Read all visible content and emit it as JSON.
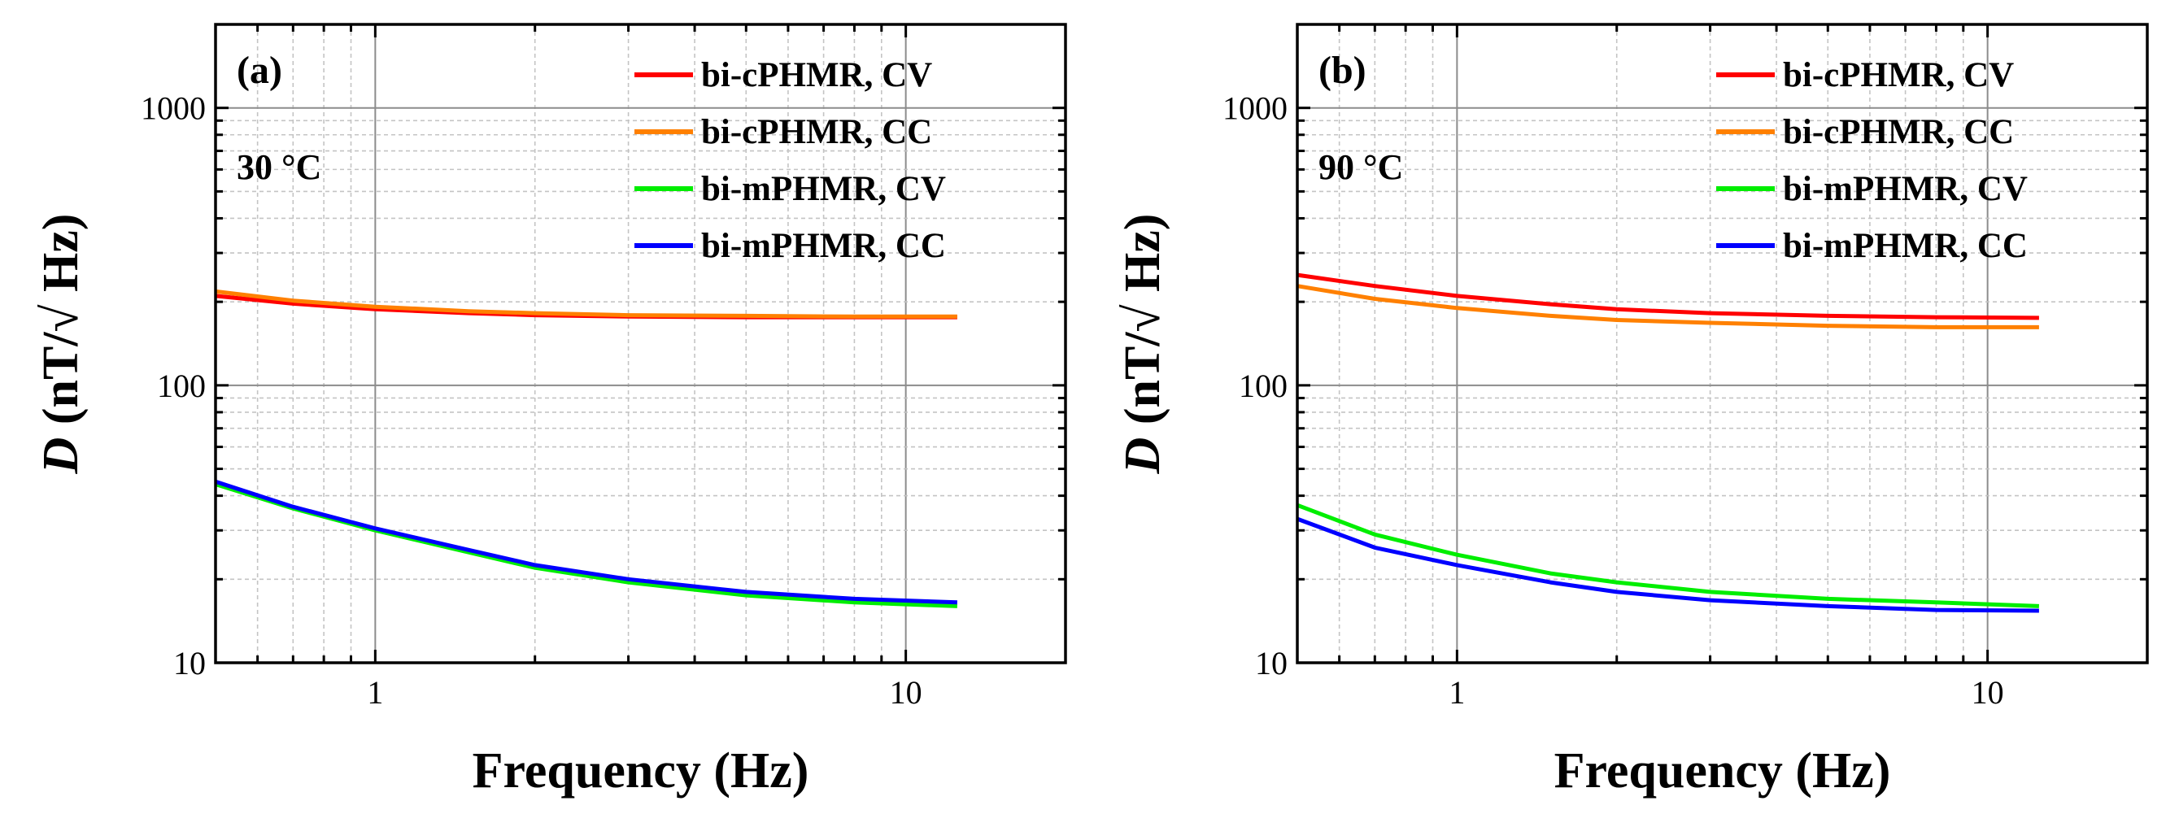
{
  "chart_data": [
    {
      "type": "line",
      "panel_label": "(a)",
      "annotation": "30 °C",
      "xlabel": "Frequency (Hz)",
      "ylabel_italic": "D",
      "ylabel_rest": " (nT/√ Hz)",
      "xscale": "log",
      "yscale": "log",
      "xlim": [
        0.5,
        20
      ],
      "ylim": [
        10,
        2000
      ],
      "x_ticks": [
        1,
        10
      ],
      "x_tick_labels": [
        "1",
        "10"
      ],
      "y_ticks": [
        10,
        100,
        1000
      ],
      "y_tick_labels": [
        "10",
        "100",
        "1000"
      ],
      "grid": true,
      "legend_position": "top-right",
      "series": [
        {
          "name": "bi-cPHMR, CV",
          "color": "#ff0000",
          "x": [
            0.5,
            0.7,
            1,
            1.5,
            2,
            3,
            5,
            8,
            12.5
          ],
          "y": [
            210,
            197,
            188,
            182,
            179,
            177,
            176,
            176,
            176
          ]
        },
        {
          "name": "bi-cPHMR, CC",
          "color": "#ff8000",
          "x": [
            0.5,
            0.7,
            1,
            1.5,
            2,
            3,
            5,
            8,
            12.5
          ],
          "y": [
            218,
            202,
            192,
            185,
            182,
            179,
            178,
            177,
            177
          ]
        },
        {
          "name": "bi-mPHMR, CV",
          "color": "#00ee00",
          "x": [
            0.5,
            0.7,
            1,
            1.5,
            2,
            3,
            5,
            8,
            12.5
          ],
          "y": [
            44,
            36,
            30,
            25,
            22,
            19.5,
            17.5,
            16.5,
            16
          ]
        },
        {
          "name": "bi-mPHMR, CC",
          "color": "#0000ff",
          "x": [
            0.5,
            0.7,
            1,
            1.5,
            2,
            3,
            5,
            8,
            12.5
          ],
          "y": [
            45,
            36.5,
            30.5,
            25.5,
            22.5,
            20,
            18,
            17,
            16.5
          ]
        }
      ]
    },
    {
      "type": "line",
      "panel_label": "(b)",
      "annotation": "90 °C",
      "xlabel": "Frequency (Hz)",
      "ylabel_italic": "D",
      "ylabel_rest": " (nT/√ Hz)",
      "xscale": "log",
      "yscale": "log",
      "xlim": [
        0.5,
        20
      ],
      "ylim": [
        10,
        2000
      ],
      "x_ticks": [
        1,
        10
      ],
      "x_tick_labels": [
        "1",
        "10"
      ],
      "y_ticks": [
        10,
        100,
        1000
      ],
      "y_tick_labels": [
        "10",
        "100",
        "1000"
      ],
      "grid": true,
      "legend_position": "top-right",
      "series": [
        {
          "name": "bi-cPHMR, CV",
          "color": "#ff0000",
          "x": [
            0.5,
            0.7,
            1,
            1.5,
            2,
            3,
            5,
            8,
            12.5
          ],
          "y": [
            250,
            228,
            210,
            196,
            188,
            182,
            178,
            176,
            175
          ]
        },
        {
          "name": "bi-cPHMR, CC",
          "color": "#ff8000",
          "x": [
            0.5,
            0.7,
            1,
            1.5,
            2,
            3,
            5,
            8,
            12.5
          ],
          "y": [
            228,
            205,
            190,
            178,
            172,
            168,
            164,
            162,
            162
          ]
        },
        {
          "name": "bi-mPHMR, CV",
          "color": "#00ee00",
          "x": [
            0.5,
            0.7,
            1,
            1.5,
            2,
            3,
            5,
            8,
            12.5
          ],
          "y": [
            37,
            29,
            24.5,
            21,
            19.5,
            18,
            17,
            16.5,
            16
          ]
        },
        {
          "name": "bi-mPHMR, CC",
          "color": "#0000ff",
          "x": [
            0.5,
            0.7,
            1,
            1.5,
            2,
            3,
            5,
            8,
            12.5
          ],
          "y": [
            33,
            26,
            22.5,
            19.5,
            18,
            16.8,
            16,
            15.5,
            15.4
          ]
        }
      ]
    }
  ]
}
